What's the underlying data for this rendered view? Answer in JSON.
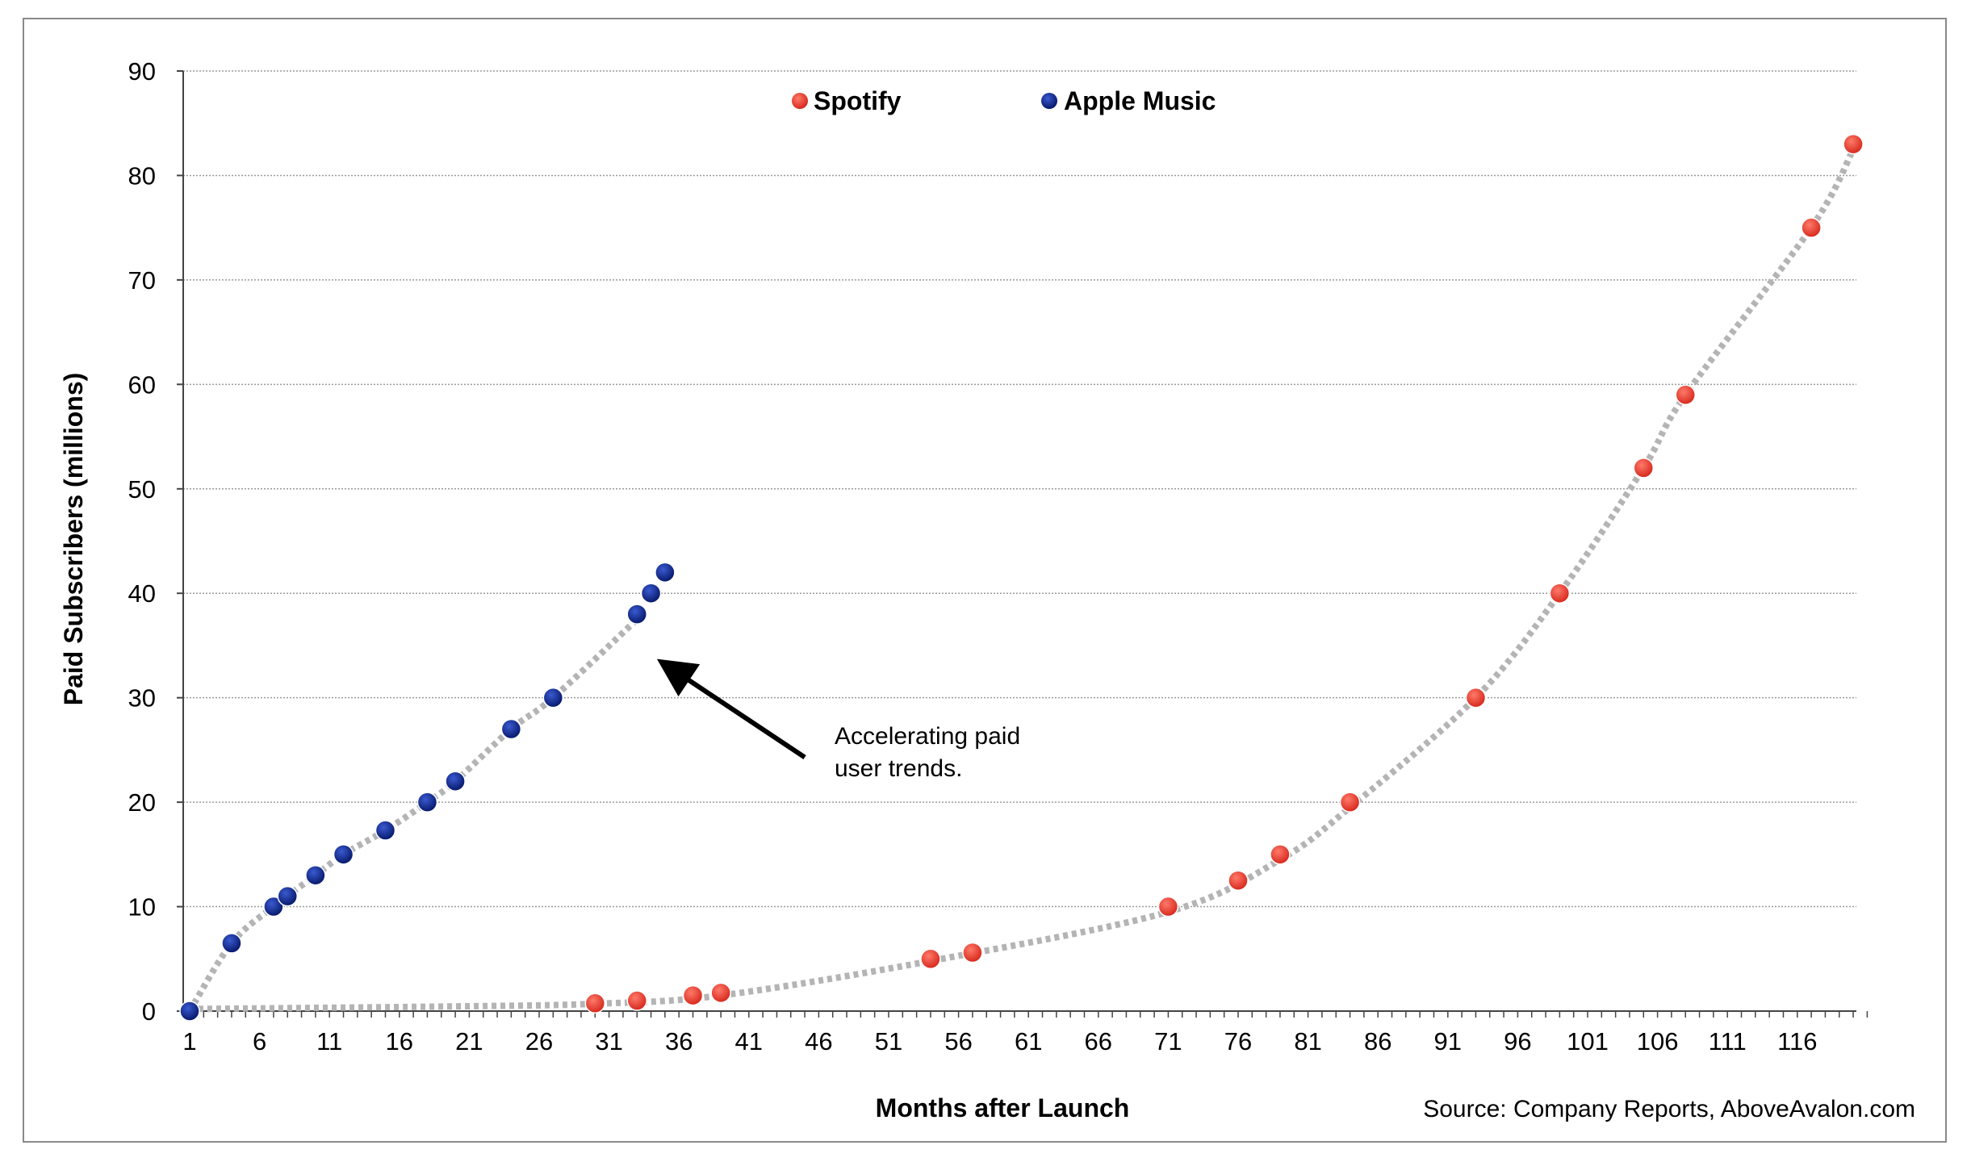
{
  "chart_data": {
    "type": "scatter",
    "title": "",
    "xlabel": "Months after Launch",
    "ylabel": "Paid Subscribers (millions)",
    "xlim": [
      1,
      121
    ],
    "ylim": [
      0,
      90
    ],
    "yticks": [
      0,
      10,
      20,
      30,
      40,
      50,
      60,
      70,
      80,
      90
    ],
    "xticks": [
      1,
      6,
      11,
      16,
      21,
      26,
      31,
      36,
      41,
      46,
      51,
      56,
      61,
      66,
      71,
      76,
      81,
      86,
      91,
      96,
      101,
      106,
      111,
      116
    ],
    "grid": true,
    "legend_position": "top-center",
    "series": [
      {
        "name": "Spotify",
        "color": "#e8382e",
        "points": [
          {
            "x": 30,
            "y": 0.75
          },
          {
            "x": 33,
            "y": 1
          },
          {
            "x": 37,
            "y": 1.5
          },
          {
            "x": 39,
            "y": 1.75
          },
          {
            "x": 54,
            "y": 5
          },
          {
            "x": 57,
            "y": 5.6
          },
          {
            "x": 71,
            "y": 10
          },
          {
            "x": 76,
            "y": 12.5
          },
          {
            "x": 79,
            "y": 15
          },
          {
            "x": 84,
            "y": 20
          },
          {
            "x": 93,
            "y": 30
          },
          {
            "x": 99,
            "y": 40
          },
          {
            "x": 105,
            "y": 52
          },
          {
            "x": 108,
            "y": 59
          },
          {
            "x": 117,
            "y": 75
          },
          {
            "x": 120,
            "y": 83
          }
        ],
        "trend": [
          {
            "x": 1,
            "y": 0.2
          },
          {
            "x": 20,
            "y": 0.45
          },
          {
            "x": 30,
            "y": 0.7
          },
          {
            "x": 39,
            "y": 1.5
          },
          {
            "x": 54,
            "y": 4.8
          },
          {
            "x": 71,
            "y": 9.5
          },
          {
            "x": 79,
            "y": 14.5
          },
          {
            "x": 84,
            "y": 19.5
          },
          {
            "x": 93,
            "y": 30
          },
          {
            "x": 99,
            "y": 40
          },
          {
            "x": 105,
            "y": 52
          },
          {
            "x": 108,
            "y": 59
          },
          {
            "x": 117,
            "y": 75
          },
          {
            "x": 120,
            "y": 82.5
          }
        ]
      },
      {
        "name": "Apple Music",
        "color": "#0d2a8a",
        "points": [
          {
            "x": 1,
            "y": 0
          },
          {
            "x": 4,
            "y": 6.5
          },
          {
            "x": 7,
            "y": 10
          },
          {
            "x": 8,
            "y": 11
          },
          {
            "x": 10,
            "y": 13
          },
          {
            "x": 12,
            "y": 15
          },
          {
            "x": 15,
            "y": 17.3
          },
          {
            "x": 18,
            "y": 20
          },
          {
            "x": 20,
            "y": 22
          },
          {
            "x": 24,
            "y": 27
          },
          {
            "x": 27,
            "y": 30
          },
          {
            "x": 33,
            "y": 38
          },
          {
            "x": 34,
            "y": 40
          },
          {
            "x": 35,
            "y": 42
          }
        ],
        "trend": [
          {
            "x": 1,
            "y": 0
          },
          {
            "x": 4,
            "y": 6.5
          },
          {
            "x": 7,
            "y": 10
          },
          {
            "x": 10,
            "y": 13
          },
          {
            "x": 12,
            "y": 15
          },
          {
            "x": 15,
            "y": 17.3
          },
          {
            "x": 18,
            "y": 20
          },
          {
            "x": 20,
            "y": 22
          },
          {
            "x": 24,
            "y": 27
          },
          {
            "x": 27,
            "y": 30
          },
          {
            "x": 33,
            "y": 37.5
          }
        ]
      }
    ],
    "annotations": [
      {
        "line1": "Accelerating paid",
        "line2": "user trends.",
        "arrow_from": {
          "x": 45,
          "y": 24.3
        },
        "arrow_to": {
          "x": 35,
          "y": 33.2
        }
      }
    ],
    "source": "Source: Company Reports, AboveAvalon.com"
  }
}
